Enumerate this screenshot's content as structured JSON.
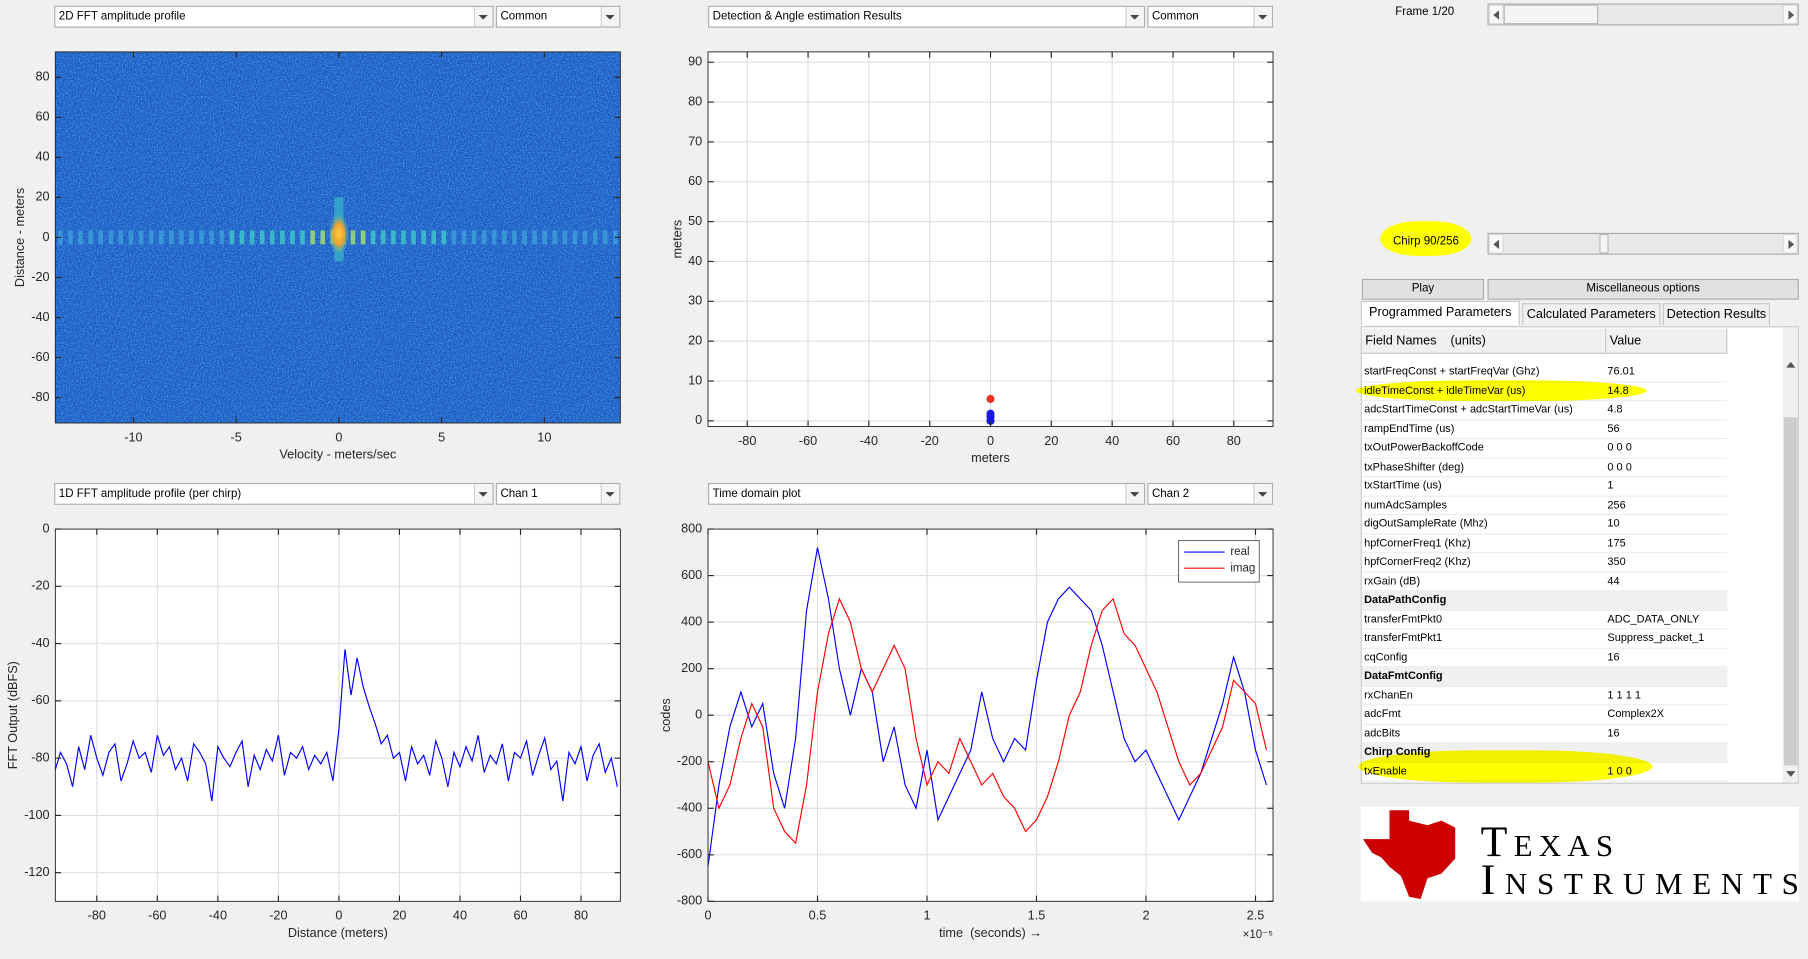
{
  "plot_selectors": [
    {
      "plot": "2D FFT amplitude profile",
      "option": "Common"
    },
    {
      "plot": "Detection & Angle estimation Results",
      "option": "Common"
    },
    {
      "plot": "1D FFT amplitude profile (per chirp)",
      "option": "Chan 1"
    },
    {
      "plot": "Time domain plot",
      "option": "Chan 2"
    }
  ],
  "frame_label": "Frame 1/20",
  "chirp_label": "Chirp 90/256",
  "buttons": [
    "Play",
    "Miscellaneous options"
  ],
  "tabs": [
    "Programmed Parameters",
    "Calculated Parameters",
    "Detection Results"
  ],
  "parameters": {
    "header": [
      "Field Names    (units)",
      "Value"
    ],
    "rows": [
      [
        "startFreqConst + startFreqVar (Ghz)",
        "76.01"
      ],
      [
        "idleTimeConst + idleTimeVar (us)",
        "14.8"
      ],
      [
        "adcStartTimeConst + adcStartTimeVar (us)",
        "4.8"
      ],
      [
        "rampEndTime (us)",
        "56"
      ],
      [
        "txOutPowerBackoffCode",
        "0 0 0"
      ],
      [
        "txPhaseShifter (deg)",
        "0 0 0"
      ],
      [
        "txStartTime (us)",
        "1"
      ],
      [
        "numAdcSamples",
        "256"
      ],
      [
        "digOutSampleRate (Mhz)",
        "10"
      ],
      [
        "hpfCornerFreq1 (Khz)",
        "175"
      ],
      [
        "hpfCornerFreq2 (Khz)",
        "350"
      ],
      [
        "rxGain (dB)",
        "44"
      ],
      {
        "section": "DataPathConfig"
      },
      [
        "transferFmtPkt0",
        "ADC_DATA_ONLY"
      ],
      [
        "transferFmtPkt1",
        "Suppress_packet_1"
      ],
      [
        "cqConfig",
        "16"
      ],
      {
        "section": "DataFmtConfig"
      },
      [
        "rxChanEn",
        "1 1 1 1"
      ],
      [
        "adcFmt",
        "Complex2X"
      ],
      [
        "adcBits",
        "16"
      ],
      {
        "section": "Chirp Config"
      },
      [
        "txEnable",
        "1 0 0"
      ]
    ]
  },
  "logo": [
    "Texas",
    "Instruments"
  ],
  "chart_data": [
    {
      "type": "heatmap",
      "xlabel": "Velocity - meters/sec",
      "ylabel": "Distance - meters",
      "xlim": [
        -13.8,
        13.7
      ],
      "xticks": [
        -10,
        -5,
        0,
        5,
        10
      ],
      "ylim": [
        -92.7,
        92.7
      ],
      "yticks": [
        -80,
        -60,
        -40,
        -20,
        0,
        20,
        40,
        60,
        80
      ],
      "grid": false
    },
    {
      "type": "scatter",
      "xlabel": "meters",
      "ylabel": "meters",
      "xlim": [
        -92.9,
        92.9
      ],
      "xticks": [
        -80,
        -60,
        -40,
        -20,
        0,
        20,
        40,
        60,
        80
      ],
      "ylim": [
        -1.4,
        92.6
      ],
      "yticks": [
        0,
        10,
        20,
        30,
        40,
        50,
        60,
        70,
        80,
        90
      ],
      "grid": true,
      "series": [
        {
          "color": "#e8341c",
          "x": [
            0
          ],
          "values": [
            5.5
          ]
        },
        {
          "color": "#1a1adf",
          "x": [
            0,
            0,
            0
          ],
          "values": [
            1.8,
            1.0,
            0
          ]
        }
      ]
    },
    {
      "type": "line",
      "xlabel": "Distance (meters)",
      "ylabel": "FFT Output (dBFS)",
      "xlim": [
        -93.7,
        93
      ],
      "xticks": [
        -80,
        -60,
        -40,
        -20,
        0,
        20,
        40,
        60,
        80
      ],
      "ylim": [
        -130,
        0
      ],
      "yticks": [
        -120,
        -100,
        -80,
        -60,
        -40,
        -20,
        0
      ],
      "grid": true,
      "x": [
        -94,
        -92,
        -90,
        -88,
        -86,
        -84,
        -82,
        -80,
        -78,
        -76,
        -74,
        -72,
        -70,
        -68,
        -66,
        -64,
        -62,
        -60,
        -58,
        -56,
        -54,
        -52,
        -50,
        -48,
        -46,
        -44,
        -42,
        -40,
        -38,
        -36,
        -34,
        -32,
        -30,
        -28,
        -26,
        -24,
        -22,
        -20,
        -18,
        -16,
        -14,
        -12,
        -10,
        -8,
        -6,
        -4,
        -2,
        0,
        2,
        4,
        6,
        8,
        10,
        12,
        14,
        16,
        18,
        20,
        22,
        24,
        26,
        28,
        30,
        32,
        34,
        36,
        38,
        40,
        42,
        44,
        46,
        48,
        50,
        52,
        54,
        56,
        58,
        60,
        62,
        64,
        66,
        68,
        70,
        72,
        74,
        76,
        78,
        80,
        82,
        84,
        86,
        88,
        90,
        92
      ],
      "series": [
        {
          "color": "#0000ff",
          "values": [
            -85,
            -78,
            -82,
            -90,
            -76,
            -84,
            -72,
            -80,
            -86,
            -78,
            -75,
            -88,
            -82,
            -74,
            -80,
            -78,
            -85,
            -72,
            -79,
            -76,
            -84,
            -80,
            -88,
            -75,
            -78,
            -82,
            -95,
            -76,
            -80,
            -83,
            -78,
            -74,
            -90,
            -79,
            -84,
            -77,
            -81,
            -72,
            -86,
            -78,
            -80,
            -76,
            -84,
            -79,
            -82,
            -78,
            -88,
            -70,
            -42,
            -58,
            -45,
            -55,
            -62,
            -68,
            -75,
            -72,
            -80,
            -78,
            -88,
            -76,
            -82,
            -79,
            -86,
            -74,
            -80,
            -90,
            -78,
            -83,
            -76,
            -81,
            -72,
            -85,
            -79,
            -82,
            -75,
            -88,
            -78,
            -80,
            -74,
            -86,
            -79,
            -73,
            -84,
            -81,
            -95,
            -78,
            -82,
            -76,
            -88,
            -79,
            -75,
            -85,
            -80,
            -90
          ]
        }
      ]
    },
    {
      "type": "line",
      "xlabel": "time  (seconds) →",
      "ylabel": "codes",
      "x_exponent": "×10⁻⁵",
      "xlim": [
        0,
        2.58
      ],
      "xticks": [
        0,
        0.5,
        1,
        1.5,
        2,
        2.5
      ],
      "ylim": [
        -800,
        800
      ],
      "yticks": [
        -800,
        -600,
        -400,
        -200,
        0,
        200,
        400,
        600,
        800
      ],
      "grid": true,
      "legend": "northeast",
      "x": [
        0,
        0.05,
        0.1,
        0.15,
        0.2,
        0.25,
        0.3,
        0.35,
        0.4,
        0.45,
        0.5,
        0.55,
        0.6,
        0.65,
        0.7,
        0.75,
        0.8,
        0.85,
        0.9,
        0.95,
        1,
        1.05,
        1.1,
        1.15,
        1.2,
        1.25,
        1.3,
        1.35,
        1.4,
        1.45,
        1.5,
        1.55,
        1.6,
        1.65,
        1.7,
        1.75,
        1.8,
        1.85,
        1.9,
        1.95,
        2,
        2.05,
        2.1,
        2.15,
        2.2,
        2.25,
        2.3,
        2.35,
        2.4,
        2.45,
        2.5,
        2.55
      ],
      "series": [
        {
          "name": "real",
          "color": "#0000ff",
          "values": [
            -650,
            -300,
            -50,
            100,
            -50,
            50,
            -250,
            -400,
            -100,
            450,
            720,
            500,
            200,
            0,
            200,
            100,
            -200,
            -50,
            -300,
            -400,
            -150,
            -450,
            -350,
            -250,
            -150,
            100,
            -100,
            -200,
            -100,
            -150,
            150,
            400,
            500,
            550,
            500,
            450,
            300,
            100,
            -100,
            -200,
            -150,
            -250,
            -350,
            -450,
            -350,
            -250,
            -100,
            50,
            250,
            100,
            -150,
            -300
          ]
        },
        {
          "name": "imag",
          "color": "#ff0000",
          "values": [
            -200,
            -400,
            -300,
            -100,
            50,
            -50,
            -400,
            -500,
            -550,
            -300,
            100,
            350,
            500,
            400,
            200,
            100,
            200,
            300,
            200,
            -100,
            -300,
            -200,
            -250,
            -100,
            -200,
            -300,
            -250,
            -350,
            -400,
            -500,
            -450,
            -350,
            -200,
            0,
            100,
            300,
            450,
            500,
            350,
            300,
            200,
            100,
            -50,
            -200,
            -300,
            -250,
            -150,
            -50,
            150,
            100,
            50,
            -150
          ]
        }
      ]
    }
  ]
}
